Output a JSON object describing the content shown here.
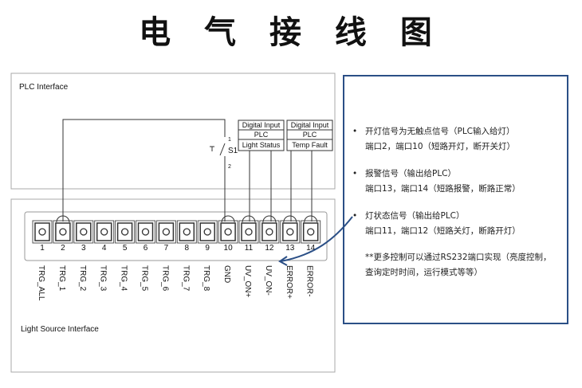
{
  "title": "电 气 接 线 图",
  "plc_interface": {
    "label": "PLC Interface",
    "switch": {
      "name": "S1",
      "pin1": "1",
      "pin2": "2"
    },
    "inputs": [
      {
        "line1": "Digital Input",
        "line2": "PLC",
        "line3": "Light Status"
      },
      {
        "line1": "Digital Input",
        "line2": "PLC",
        "line3": "Temp Fault"
      }
    ]
  },
  "light_source": {
    "label": "Light Source Interface",
    "terminals": [
      {
        "num": "1",
        "label": "TRG_ALL"
      },
      {
        "num": "2",
        "label": "TRG_1"
      },
      {
        "num": "3",
        "label": "TRG_2"
      },
      {
        "num": "4",
        "label": "TRG_3"
      },
      {
        "num": "5",
        "label": "TRG_4"
      },
      {
        "num": "6",
        "label": "TRG_5"
      },
      {
        "num": "7",
        "label": "TRG_6"
      },
      {
        "num": "8",
        "label": "TRG_7"
      },
      {
        "num": "9",
        "label": "TRG_8"
      },
      {
        "num": "10",
        "label": "GND"
      },
      {
        "num": "11",
        "label": "UV_ON+"
      },
      {
        "num": "12",
        "label": "UV_ON-"
      },
      {
        "num": "13",
        "label": "ERROR+"
      },
      {
        "num": "14",
        "label": "ERROR-"
      }
    ]
  },
  "notes": [
    {
      "bullet": "•",
      "l1": "开灯信号为无触点信号（PLC输入给灯）",
      "l2": "端口2，端口10（短路开灯，断开关灯）"
    },
    {
      "bullet": "•",
      "l1": "报警信号（输出给PLC）",
      "l2": "端口13，端口14（短路报警，断路正常）"
    },
    {
      "bullet": "•",
      "l1": "灯状态信号（输出给PLC）",
      "l2": "端口11，端口12（短路关灯，断路开灯）"
    },
    {
      "bullet": "",
      "l1": "**更多控制可以通过RS232端口实现（亮度控制，",
      "l2": "查询定时时间，运行模式等等）"
    }
  ],
  "colors": {
    "accent": "#2b4f86",
    "line": "#333333",
    "box": "#999999"
  }
}
